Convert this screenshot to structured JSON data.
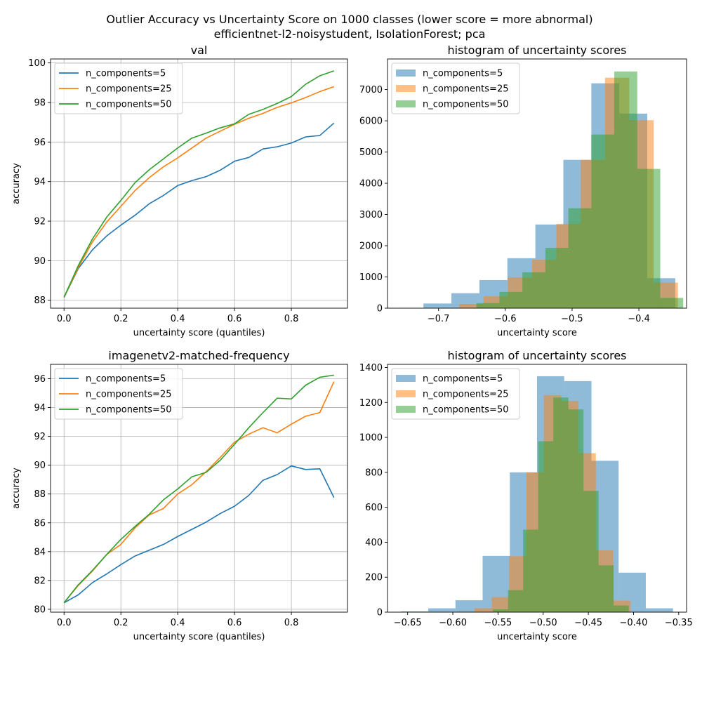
{
  "figure": {
    "suptitle_line1": "Outlier Accuracy vs Uncertainty Score on 1000 classes (lower score = more abnormal)",
    "suptitle_line2": "efficientnet-l2-noisystudent, IsolationForest; pca"
  },
  "colors": {
    "blue": "#1f77b4",
    "orange": "#ff7f0e",
    "green": "#2ca02c",
    "grid": "#b0b0b0"
  },
  "chart_data": [
    {
      "type": "line",
      "title": "val",
      "xlabel": "uncertainty score (quantiles)",
      "ylabel": "accuracy",
      "xlim": [
        -0.0475,
        0.9975
      ],
      "ylim": [
        87.6,
        100.2
      ],
      "xticks": [
        0.0,
        0.2,
        0.4,
        0.6,
        0.8
      ],
      "xtick_labels": [
        "0.0",
        "0.2",
        "0.4",
        "0.6",
        "0.8"
      ],
      "yticks": [
        88,
        90,
        92,
        94,
        96,
        98,
        100
      ],
      "ytick_labels": [
        "88",
        "90",
        "92",
        "94",
        "96",
        "98",
        "100"
      ],
      "grid": true,
      "legend": "upper left",
      "x": [
        0.0,
        0.05,
        0.1,
        0.15,
        0.2,
        0.25,
        0.3,
        0.35,
        0.4,
        0.45,
        0.5,
        0.55,
        0.6,
        0.65,
        0.7,
        0.75,
        0.8,
        0.85,
        0.9,
        0.95
      ],
      "series": [
        {
          "name": "n_components=5",
          "color": "blue",
          "values": [
            88.15,
            89.6,
            90.55,
            91.25,
            91.8,
            92.3,
            92.88,
            93.3,
            93.8,
            94.05,
            94.25,
            94.58,
            95.03,
            95.22,
            95.65,
            95.76,
            95.95,
            96.26,
            96.33,
            96.96
          ]
        },
        {
          "name": "n_components=25",
          "color": "orange",
          "values": [
            88.15,
            89.65,
            90.95,
            91.95,
            92.75,
            93.55,
            94.2,
            94.75,
            95.2,
            95.7,
            96.2,
            96.55,
            96.9,
            97.2,
            97.45,
            97.75,
            97.98,
            98.25,
            98.55,
            98.8
          ]
        },
        {
          "name": "n_components=50",
          "color": "green",
          "values": [
            88.15,
            89.75,
            91.1,
            92.2,
            93.05,
            93.95,
            94.6,
            95.15,
            95.7,
            96.2,
            96.45,
            96.72,
            96.92,
            97.4,
            97.65,
            97.95,
            98.3,
            98.92,
            99.35,
            99.6
          ]
        }
      ]
    },
    {
      "type": "histogram",
      "title": "histogram of uncertainty scores",
      "xlabel": "uncertainty score",
      "ylabel": "",
      "xlim": [
        -0.7764,
        -0.3286
      ],
      "ylim": [
        0,
        7980
      ],
      "xticks": [
        -0.7,
        -0.6,
        -0.5,
        -0.4
      ],
      "xtick_labels": [
        "−0.7",
        "−0.6",
        "−0.5",
        "−0.4"
      ],
      "yticks": [
        0,
        1000,
        2000,
        3000,
        4000,
        5000,
        6000,
        7000
      ],
      "ytick_labels": [
        "0",
        "1000",
        "2000",
        "3000",
        "4000",
        "5000",
        "6000",
        "7000"
      ],
      "grid": false,
      "legend": "upper left",
      "series": [
        {
          "name": "n_components=5",
          "color": "blue",
          "opacity": 0.5,
          "bin_start": -0.7645,
          "bin_width": 0.0419,
          "counts": [
            10,
            150,
            480,
            900,
            1600,
            2680,
            4750,
            7200,
            6230,
            960
          ]
        },
        {
          "name": "n_components=25",
          "color": "orange",
          "opacity": 0.5,
          "bin_start": -0.7055,
          "bin_width": 0.0364,
          "counts": [
            10,
            130,
            380,
            980,
            1550,
            2700,
            4750,
            7380,
            6020,
            820
          ]
        },
        {
          "name": "n_components=50",
          "color": "green",
          "opacity": 0.5,
          "bin_start": -0.6776,
          "bin_width": 0.0344,
          "counts": [
            0,
            160,
            520,
            1150,
            1930,
            3200,
            5560,
            7580,
            4460,
            330
          ]
        }
      ]
    },
    {
      "type": "line",
      "title": "imagenetv2-matched-frequency",
      "xlabel": "uncertainty score (quantiles)",
      "ylabel": "accuracy",
      "xlim": [
        -0.0475,
        0.9975
      ],
      "ylim": [
        79.8,
        97.0
      ],
      "xticks": [
        0.0,
        0.2,
        0.4,
        0.6,
        0.8
      ],
      "xtick_labels": [
        "0.0",
        "0.2",
        "0.4",
        "0.6",
        "0.8"
      ],
      "yticks": [
        80,
        82,
        84,
        86,
        88,
        90,
        92,
        94,
        96
      ],
      "ytick_labels": [
        "80",
        "82",
        "84",
        "86",
        "88",
        "90",
        "92",
        "94",
        "96"
      ],
      "grid": true,
      "legend": "upper left",
      "x": [
        0.0,
        0.05,
        0.1,
        0.15,
        0.2,
        0.25,
        0.3,
        0.35,
        0.4,
        0.45,
        0.5,
        0.55,
        0.6,
        0.65,
        0.7,
        0.75,
        0.8,
        0.85,
        0.9,
        0.95
      ],
      "series": [
        {
          "name": "n_components=5",
          "color": "blue",
          "values": [
            80.45,
            81.0,
            81.85,
            82.45,
            83.1,
            83.7,
            84.1,
            84.5,
            85.05,
            85.55,
            86.05,
            86.65,
            87.15,
            87.9,
            88.95,
            89.35,
            89.95,
            89.7,
            89.75,
            87.75
          ]
        },
        {
          "name": "n_components=25",
          "color": "orange",
          "values": [
            80.45,
            81.65,
            82.65,
            83.8,
            84.5,
            85.65,
            86.55,
            87.0,
            88.0,
            88.65,
            89.55,
            90.55,
            91.6,
            92.15,
            92.6,
            92.25,
            92.85,
            93.4,
            93.65,
            95.8
          ]
        },
        {
          "name": "n_components=50",
          "color": "green",
          "values": [
            80.45,
            81.7,
            82.7,
            83.8,
            84.85,
            85.75,
            86.6,
            87.6,
            88.35,
            89.2,
            89.5,
            90.35,
            91.45,
            92.6,
            93.65,
            94.65,
            94.6,
            95.55,
            96.1,
            96.25
          ]
        }
      ]
    },
    {
      "type": "histogram",
      "title": "histogram of uncertainty scores",
      "xlabel": "uncertainty score",
      "ylabel": "",
      "xlim": [
        -0.6723,
        -0.3413
      ],
      "ylim": [
        0,
        1418
      ],
      "xticks": [
        -0.65,
        -0.6,
        -0.55,
        -0.5,
        -0.45,
        -0.4,
        -0.35
      ],
      "xtick_labels": [
        "−0.65",
        "−0.60",
        "−0.55",
        "−0.50",
        "−0.45",
        "−0.40",
        "−0.35"
      ],
      "yticks": [
        0,
        200,
        400,
        600,
        800,
        1000,
        1200,
        1400
      ],
      "ytick_labels": [
        "0",
        "200",
        "400",
        "600",
        "800",
        "1000",
        "1200",
        "1400"
      ],
      "grid": false,
      "legend": "upper left",
      "series": [
        {
          "name": "n_components=5",
          "color": "blue",
          "opacity": 0.5,
          "bin_start": -0.6573,
          "bin_width": 0.0301,
          "counts": [
            4,
            22,
            68,
            322,
            800,
            1350,
            1322,
            866,
            226,
            22
          ]
        },
        {
          "name": "n_components=25",
          "color": "orange",
          "opacity": 0.5,
          "bin_start": -0.5953,
          "bin_width": 0.0192,
          "counts": [
            4,
            22,
            86,
            320,
            800,
            1242,
            1208,
            910,
            354,
            66
          ]
        },
        {
          "name": "n_components=50",
          "color": "green",
          "opacity": 0.5,
          "bin_start": -0.5723,
          "bin_width": 0.0167,
          "counts": [
            2,
            16,
            126,
            472,
            978,
            1228,
            1160,
            694,
            268,
            38
          ]
        }
      ]
    }
  ]
}
